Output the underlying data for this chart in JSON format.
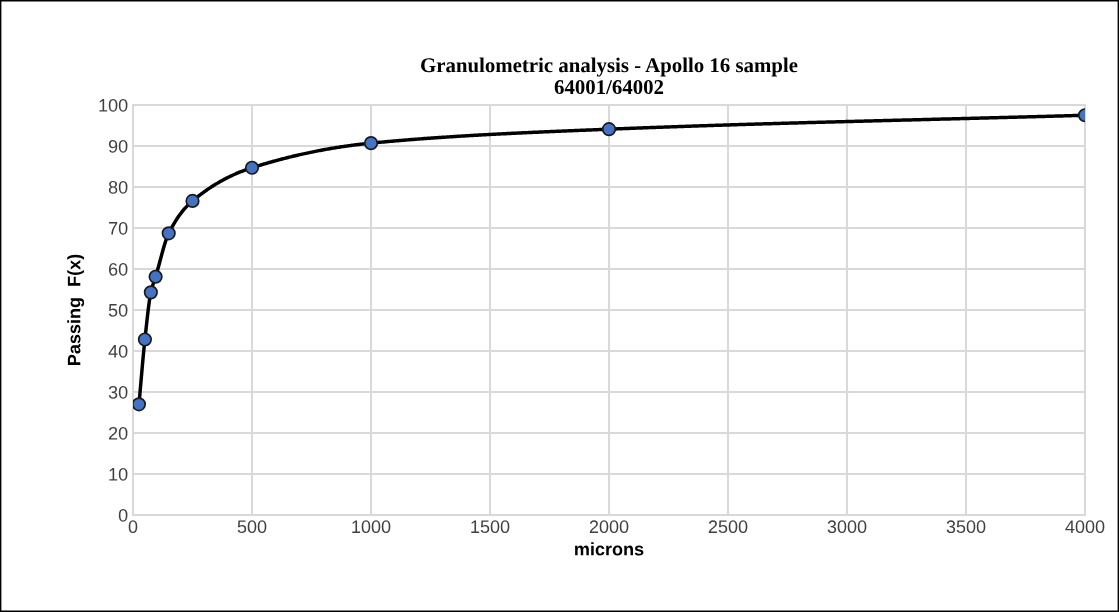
{
  "chart_data": {
    "type": "line",
    "title": "Granulometric analysis - Apollo 16 sample\n64001/64002",
    "xlabel": "microns",
    "ylabel": "Passing  F(x)",
    "x": [
      25,
      50,
      75,
      95,
      150,
      250,
      500,
      1000,
      2000,
      4000
    ],
    "series": [
      {
        "color": "#4472c4",
        "values": [
          27.0,
          42.8,
          54.3,
          58.1,
          68.7,
          76.6,
          84.7,
          90.7,
          94.1,
          97.5
        ]
      }
    ],
    "xlim": [
      0,
      4000
    ],
    "xticks": [
      0,
      500,
      1000,
      1500,
      2000,
      2500,
      3000,
      3500,
      4000
    ],
    "ylim": [
      0,
      100
    ],
    "yticks": [
      0,
      10,
      20,
      30,
      40,
      50,
      60,
      70,
      80,
      90,
      100
    ],
    "grid": true,
    "marker": "circle",
    "line_style": "solid",
    "legend": false
  }
}
